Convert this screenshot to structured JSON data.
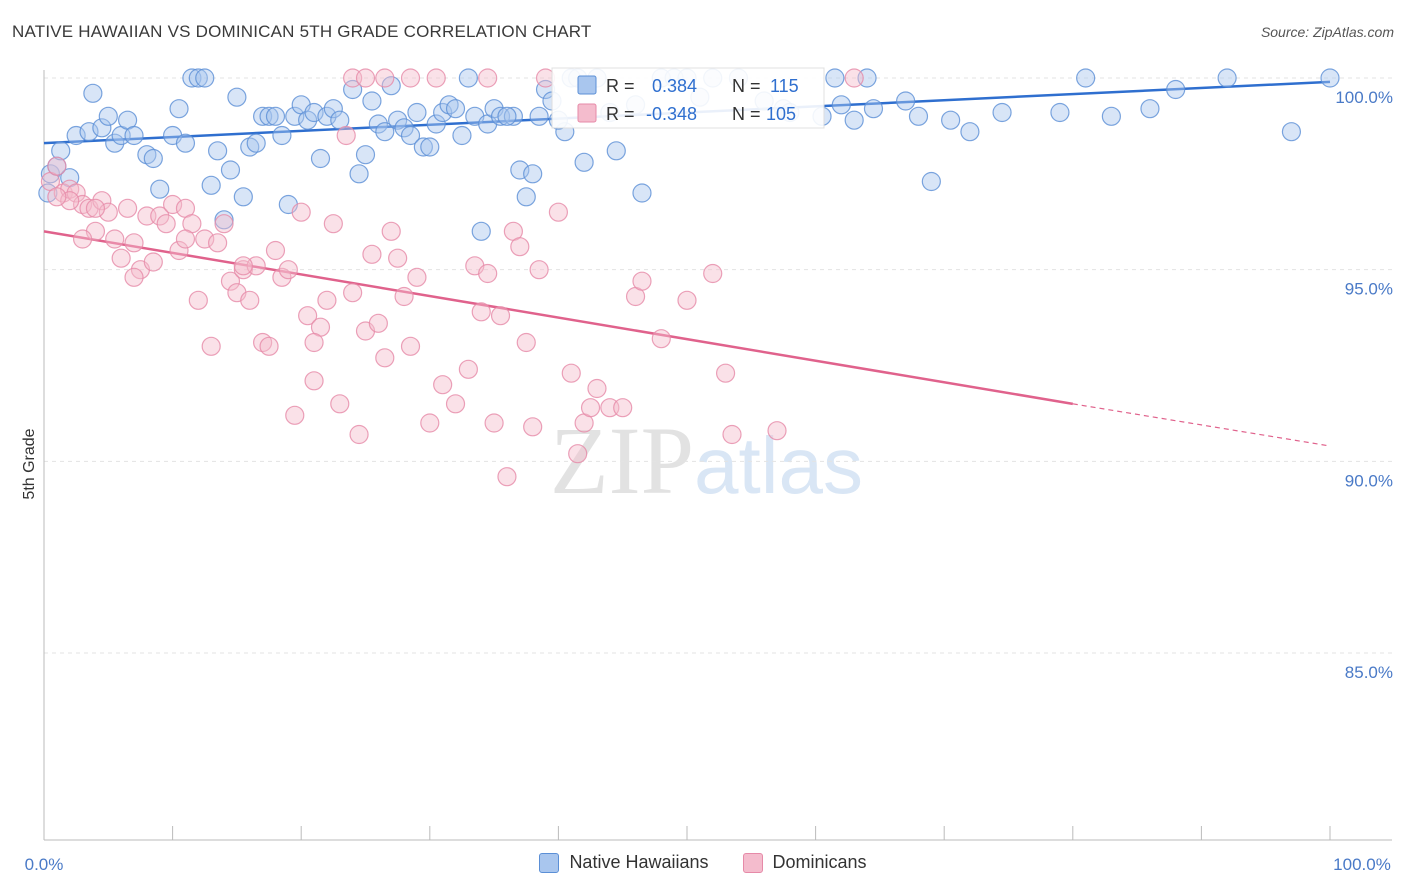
{
  "title": "NATIVE HAWAIIAN VS DOMINICAN 5TH GRADE CORRELATION CHART",
  "source": "Source: ZipAtlas.com",
  "watermark": {
    "zip": "ZIP",
    "atlas": "atlas"
  },
  "colors": {
    "blue": "#5b8fd6",
    "blue_fill": "#a9c6ee",
    "blue_line": "#2f6fcf",
    "pink": "#e68aa8",
    "pink_fill": "#f4bccd",
    "pink_line": "#e0628c",
    "tick": "#4a7ac7",
    "grid": "#e3e3e3"
  },
  "legend_top": {
    "rows": [
      {
        "r_label": "R = ",
        "r_value": "0.384",
        "n_label": "N = ",
        "n_value": "115"
      },
      {
        "r_label": "R = ",
        "r_value": "-0.348",
        "n_label": "N = ",
        "n_value": "105"
      }
    ]
  },
  "legend_bottom": [
    {
      "label": "Native Hawaiians"
    },
    {
      "label": "Dominicans"
    }
  ],
  "chart_data": {
    "type": "scatter",
    "title": "NATIVE HAWAIIAN VS DOMINICAN 5TH GRADE CORRELATION CHART",
    "xlabel": "",
    "ylabel": "5th Grade",
    "xlim": [
      0,
      100
    ],
    "ylim": [
      80,
      100.5
    ],
    "x_tick_labels": [
      "0.0%",
      "100.0%"
    ],
    "y_tick_labels": [
      "100.0%",
      "95.0%",
      "90.0%",
      "85.0%"
    ],
    "y_ticks": [
      100,
      95,
      90,
      85
    ],
    "grid": true,
    "series": [
      {
        "name": "Native Hawaiians",
        "r": 0.384,
        "n": 115,
        "trend": {
          "x": [
            0,
            100
          ],
          "y": [
            98.3,
            99.9
          ]
        },
        "points": [
          [
            0.3,
            97.0
          ],
          [
            0.5,
            97.5
          ],
          [
            1.0,
            97.7
          ],
          [
            1.3,
            98.1
          ],
          [
            2.0,
            97.4
          ],
          [
            2.5,
            98.5
          ],
          [
            3.5,
            98.6
          ],
          [
            3.8,
            99.6
          ],
          [
            4.5,
            98.7
          ],
          [
            5.0,
            99.0
          ],
          [
            5.5,
            98.3
          ],
          [
            6.0,
            98.5
          ],
          [
            6.5,
            98.9
          ],
          [
            7.0,
            98.5
          ],
          [
            8.0,
            98.0
          ],
          [
            8.5,
            97.9
          ],
          [
            9.0,
            97.1
          ],
          [
            10.0,
            98.5
          ],
          [
            10.5,
            99.2
          ],
          [
            11.0,
            98.3
          ],
          [
            11.5,
            100.0
          ],
          [
            12.0,
            100.0
          ],
          [
            12.5,
            100.0
          ],
          [
            13.0,
            97.2
          ],
          [
            13.5,
            98.1
          ],
          [
            14.0,
            96.3
          ],
          [
            14.5,
            97.6
          ],
          [
            15.0,
            99.5
          ],
          [
            15.5,
            96.9
          ],
          [
            16.0,
            98.2
          ],
          [
            16.5,
            98.3
          ],
          [
            17.0,
            99.0
          ],
          [
            17.5,
            99.0
          ],
          [
            18.0,
            99.0
          ],
          [
            18.5,
            98.5
          ],
          [
            19.0,
            96.7
          ],
          [
            19.5,
            99.0
          ],
          [
            20.0,
            99.3
          ],
          [
            20.5,
            98.9
          ],
          [
            21.0,
            99.1
          ],
          [
            21.5,
            97.9
          ],
          [
            22.0,
            99.0
          ],
          [
            22.5,
            99.2
          ],
          [
            23.0,
            98.9
          ],
          [
            24.0,
            99.7
          ],
          [
            24.5,
            97.5
          ],
          [
            25.0,
            98.0
          ],
          [
            25.5,
            99.4
          ],
          [
            26.0,
            98.8
          ],
          [
            26.5,
            98.6
          ],
          [
            27.0,
            99.8
          ],
          [
            27.5,
            98.9
          ],
          [
            28.0,
            98.7
          ],
          [
            28.5,
            98.5
          ],
          [
            29.0,
            99.1
          ],
          [
            29.5,
            98.2
          ],
          [
            30.0,
            98.2
          ],
          [
            30.5,
            98.8
          ],
          [
            31.0,
            99.1
          ],
          [
            31.5,
            99.3
          ],
          [
            32.0,
            99.2
          ],
          [
            32.5,
            98.5
          ],
          [
            33.0,
            100.0
          ],
          [
            33.5,
            99.0
          ],
          [
            34.0,
            96.0
          ],
          [
            34.5,
            98.8
          ],
          [
            35.0,
            99.2
          ],
          [
            35.5,
            99.0
          ],
          [
            36.5,
            99.0
          ],
          [
            37.0,
            97.6
          ],
          [
            37.5,
            96.9
          ],
          [
            38.0,
            97.5
          ],
          [
            38.5,
            99.0
          ],
          [
            39.0,
            99.7
          ],
          [
            39.5,
            99.4
          ],
          [
            40.5,
            98.6
          ],
          [
            41.0,
            100.0
          ],
          [
            41.5,
            100.0
          ],
          [
            42.0,
            97.8
          ],
          [
            43.0,
            100.0
          ],
          [
            44.5,
            98.1
          ],
          [
            46.5,
            97.0
          ],
          [
            48.0,
            100.0
          ],
          [
            49.0,
            100.0
          ],
          [
            50.0,
            100.0
          ],
          [
            51.0,
            99.5
          ],
          [
            52.0,
            100.0
          ],
          [
            54.0,
            100.0
          ],
          [
            56.0,
            99.4
          ],
          [
            57.5,
            99.2
          ],
          [
            60.5,
            99.0
          ],
          [
            61.5,
            100.0
          ],
          [
            62.0,
            99.3
          ],
          [
            63.0,
            98.9
          ],
          [
            64.0,
            100.0
          ],
          [
            64.5,
            99.2
          ],
          [
            67.0,
            99.4
          ],
          [
            68.0,
            99.0
          ],
          [
            69.0,
            97.3
          ],
          [
            70.5,
            98.9
          ],
          [
            72.0,
            98.6
          ],
          [
            74.5,
            99.1
          ],
          [
            79.0,
            99.1
          ],
          [
            81.0,
            100.0
          ],
          [
            83.0,
            99.0
          ],
          [
            86.0,
            99.2
          ],
          [
            88.0,
            99.7
          ],
          [
            92.0,
            100.0
          ],
          [
            97.0,
            98.6
          ],
          [
            100.0,
            100.0
          ],
          [
            36.0,
            99.0
          ],
          [
            40.0,
            98.9
          ],
          [
            44.0,
            99.1
          ],
          [
            46.0,
            99.3
          ],
          [
            58.0,
            99.1
          ]
        ]
      },
      {
        "name": "Dominicans",
        "r": -0.348,
        "n": 105,
        "trend": {
          "x": [
            0,
            80
          ],
          "y": [
            96.0,
            91.5
          ],
          "dashed_to": [
            100,
            90.4
          ]
        },
        "points": [
          [
            0.5,
            97.3
          ],
          [
            1.0,
            97.7
          ],
          [
            1.5,
            97.0
          ],
          [
            2.0,
            97.1
          ],
          [
            2.5,
            97.0
          ],
          [
            3.0,
            96.7
          ],
          [
            3.5,
            96.6
          ],
          [
            4.0,
            96.0
          ],
          [
            4.5,
            96.8
          ],
          [
            5.0,
            96.5
          ],
          [
            5.5,
            95.8
          ],
          [
            6.0,
            95.3
          ],
          [
            6.5,
            96.6
          ],
          [
            7.0,
            95.7
          ],
          [
            7.5,
            95.0
          ],
          [
            8.0,
            96.4
          ],
          [
            8.5,
            95.2
          ],
          [
            9.0,
            96.4
          ],
          [
            9.5,
            96.2
          ],
          [
            10.0,
            96.7
          ],
          [
            10.5,
            95.5
          ],
          [
            11.0,
            96.6
          ],
          [
            11.5,
            96.2
          ],
          [
            12.0,
            94.2
          ],
          [
            12.5,
            95.8
          ],
          [
            13.0,
            93.0
          ],
          [
            13.5,
            95.7
          ],
          [
            14.0,
            96.2
          ],
          [
            14.5,
            94.7
          ],
          [
            15.0,
            94.4
          ],
          [
            15.5,
            95.0
          ],
          [
            16.0,
            94.2
          ],
          [
            16.5,
            95.1
          ],
          [
            17.0,
            93.1
          ],
          [
            17.5,
            93.0
          ],
          [
            18.0,
            95.5
          ],
          [
            18.5,
            94.8
          ],
          [
            19.0,
            95.0
          ],
          [
            19.5,
            91.2
          ],
          [
            20.0,
            96.5
          ],
          [
            20.5,
            93.8
          ],
          [
            21.0,
            92.1
          ],
          [
            21.5,
            93.5
          ],
          [
            22.0,
            94.2
          ],
          [
            22.5,
            96.2
          ],
          [
            23.0,
            91.5
          ],
          [
            23.5,
            98.5
          ],
          [
            24.0,
            94.4
          ],
          [
            24.5,
            90.7
          ],
          [
            25.0,
            93.4
          ],
          [
            25.5,
            95.4
          ],
          [
            26.0,
            93.6
          ],
          [
            26.5,
            92.7
          ],
          [
            27.0,
            96.0
          ],
          [
            27.5,
            95.3
          ],
          [
            28.0,
            94.3
          ],
          [
            28.5,
            93.0
          ],
          [
            29.0,
            94.8
          ],
          [
            30.0,
            91.0
          ],
          [
            31.0,
            92.0
          ],
          [
            32.0,
            91.5
          ],
          [
            33.0,
            92.4
          ],
          [
            33.5,
            95.1
          ],
          [
            34.0,
            93.9
          ],
          [
            34.5,
            94.9
          ],
          [
            35.0,
            91.0
          ],
          [
            35.5,
            93.8
          ],
          [
            36.0,
            89.6
          ],
          [
            36.5,
            96.0
          ],
          [
            37.0,
            95.6
          ],
          [
            37.5,
            93.1
          ],
          [
            38.0,
            90.9
          ],
          [
            38.5,
            95.0
          ],
          [
            39.0,
            100.0
          ],
          [
            40.0,
            96.5
          ],
          [
            41.0,
            92.3
          ],
          [
            41.5,
            90.2
          ],
          [
            42.0,
            91.0
          ],
          [
            42.5,
            91.4
          ],
          [
            43.0,
            91.9
          ],
          [
            44.0,
            91.4
          ],
          [
            45.0,
            91.4
          ],
          [
            46.0,
            94.3
          ],
          [
            46.5,
            94.7
          ],
          [
            48.0,
            93.2
          ],
          [
            50.0,
            94.2
          ],
          [
            52.0,
            94.9
          ],
          [
            53.0,
            92.3
          ],
          [
            53.5,
            90.7
          ],
          [
            57.0,
            90.8
          ],
          [
            63.0,
            100.0
          ],
          [
            24.0,
            100.0
          ],
          [
            25.0,
            100.0
          ],
          [
            26.5,
            100.0
          ],
          [
            28.5,
            100.0
          ],
          [
            30.5,
            100.0
          ],
          [
            34.5,
            100.0
          ],
          [
            15.5,
            95.1
          ],
          [
            21.0,
            93.1
          ],
          [
            11.0,
            95.8
          ],
          [
            7.0,
            94.8
          ],
          [
            3.0,
            95.8
          ],
          [
            2.0,
            96.8
          ],
          [
            1.0,
            96.9
          ],
          [
            4.0,
            96.6
          ]
        ]
      }
    ]
  }
}
